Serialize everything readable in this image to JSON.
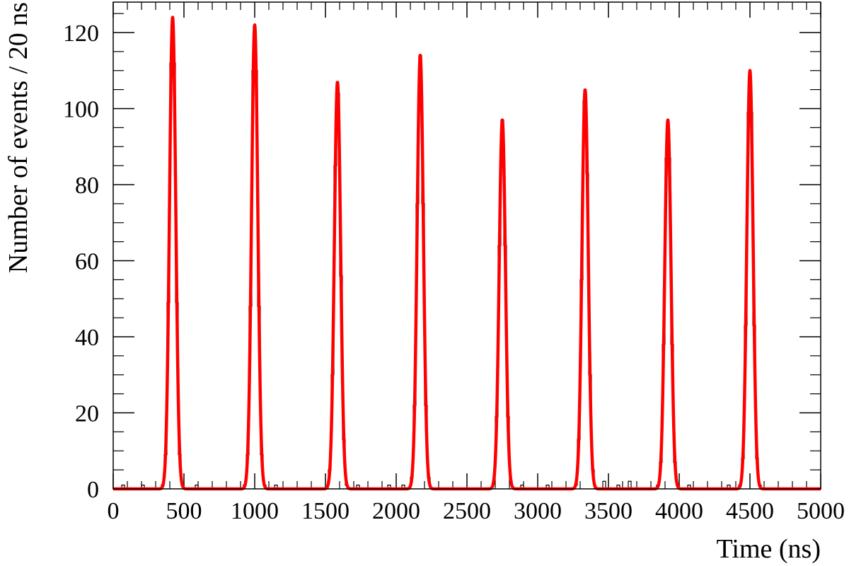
{
  "chart_data": {
    "type": "line",
    "title": "",
    "xlabel": "Time (ns)",
    "ylabel": "Number of events / 20 ns",
    "xlim": [
      0,
      5000
    ],
    "ylim": [
      0,
      128
    ],
    "x_ticks": [
      0,
      500,
      1000,
      1500,
      2000,
      2500,
      3000,
      3500,
      4000,
      4500,
      5000
    ],
    "y_ticks": [
      0,
      20,
      40,
      60,
      80,
      100,
      120
    ],
    "grid": false,
    "legend": "none",
    "bin_width_ns": 20,
    "fit_color": "#ff0000",
    "histogram_color": "#000000",
    "peaks": [
      {
        "center": 420,
        "height": 124,
        "sigma": 22
      },
      {
        "center": 1000,
        "height": 122,
        "sigma": 22
      },
      {
        "center": 1585,
        "height": 107,
        "sigma": 22
      },
      {
        "center": 2170,
        "height": 114,
        "sigma": 22
      },
      {
        "center": 2750,
        "height": 97,
        "sigma": 22
      },
      {
        "center": 3335,
        "height": 105,
        "sigma": 22
      },
      {
        "center": 3920,
        "height": 97,
        "sigma": 22
      },
      {
        "center": 4500,
        "height": 110,
        "sigma": 22
      }
    ],
    "background_bins": [
      {
        "x": 60,
        "y": 1
      },
      {
        "x": 200,
        "y": 1
      },
      {
        "x": 580,
        "y": 1
      },
      {
        "x": 1150,
        "y": 1
      },
      {
        "x": 1720,
        "y": 1
      },
      {
        "x": 1940,
        "y": 1
      },
      {
        "x": 2050,
        "y": 1
      },
      {
        "x": 2880,
        "y": 1
      },
      {
        "x": 3060,
        "y": 1
      },
      {
        "x": 3470,
        "y": 2
      },
      {
        "x": 3560,
        "y": 1
      },
      {
        "x": 3640,
        "y": 2
      },
      {
        "x": 4060,
        "y": 1
      },
      {
        "x": 4350,
        "y": 1
      }
    ]
  }
}
